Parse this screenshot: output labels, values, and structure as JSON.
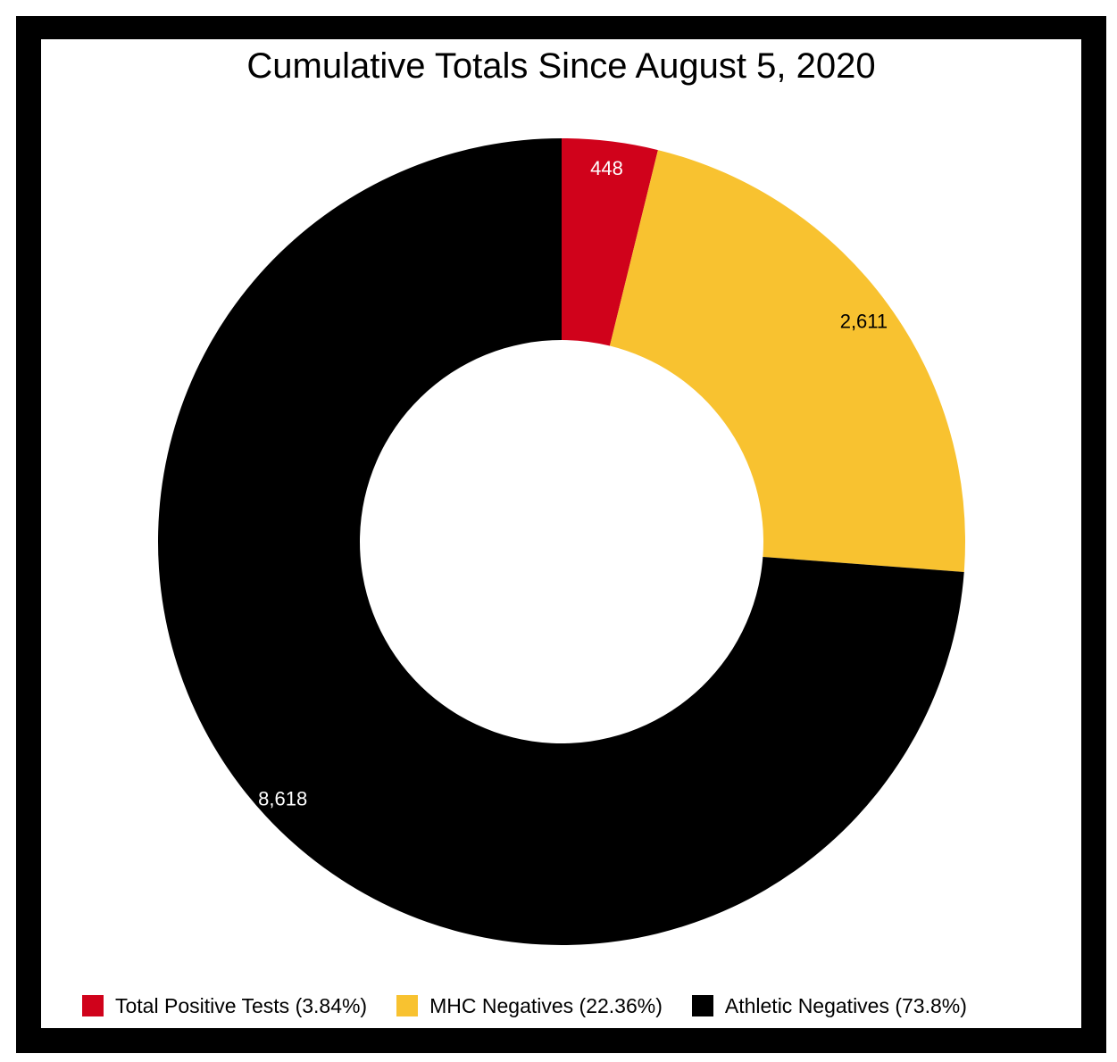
{
  "chart_data": {
    "type": "pie",
    "variant": "donut",
    "title": "Cumulative Totals Since August 5, 2020",
    "slices": [
      {
        "label": "Total Positive Tests",
        "value": 448,
        "value_text": "448",
        "percent_text": "(3.84%)",
        "color": "#d0021b",
        "label_color": "#ffffff"
      },
      {
        "label": "MHC Negatives",
        "value": 2611,
        "value_text": "2,611",
        "percent_text": "(22.36%)",
        "color": "#f8c230",
        "label_color": "#000000"
      },
      {
        "label": "Athletic Negatives",
        "value": 8618,
        "value_text": "8,618",
        "percent_text": "(73.8%)",
        "color": "#000000",
        "label_color": "#ffffff"
      }
    ],
    "legend_position": "bottom"
  }
}
